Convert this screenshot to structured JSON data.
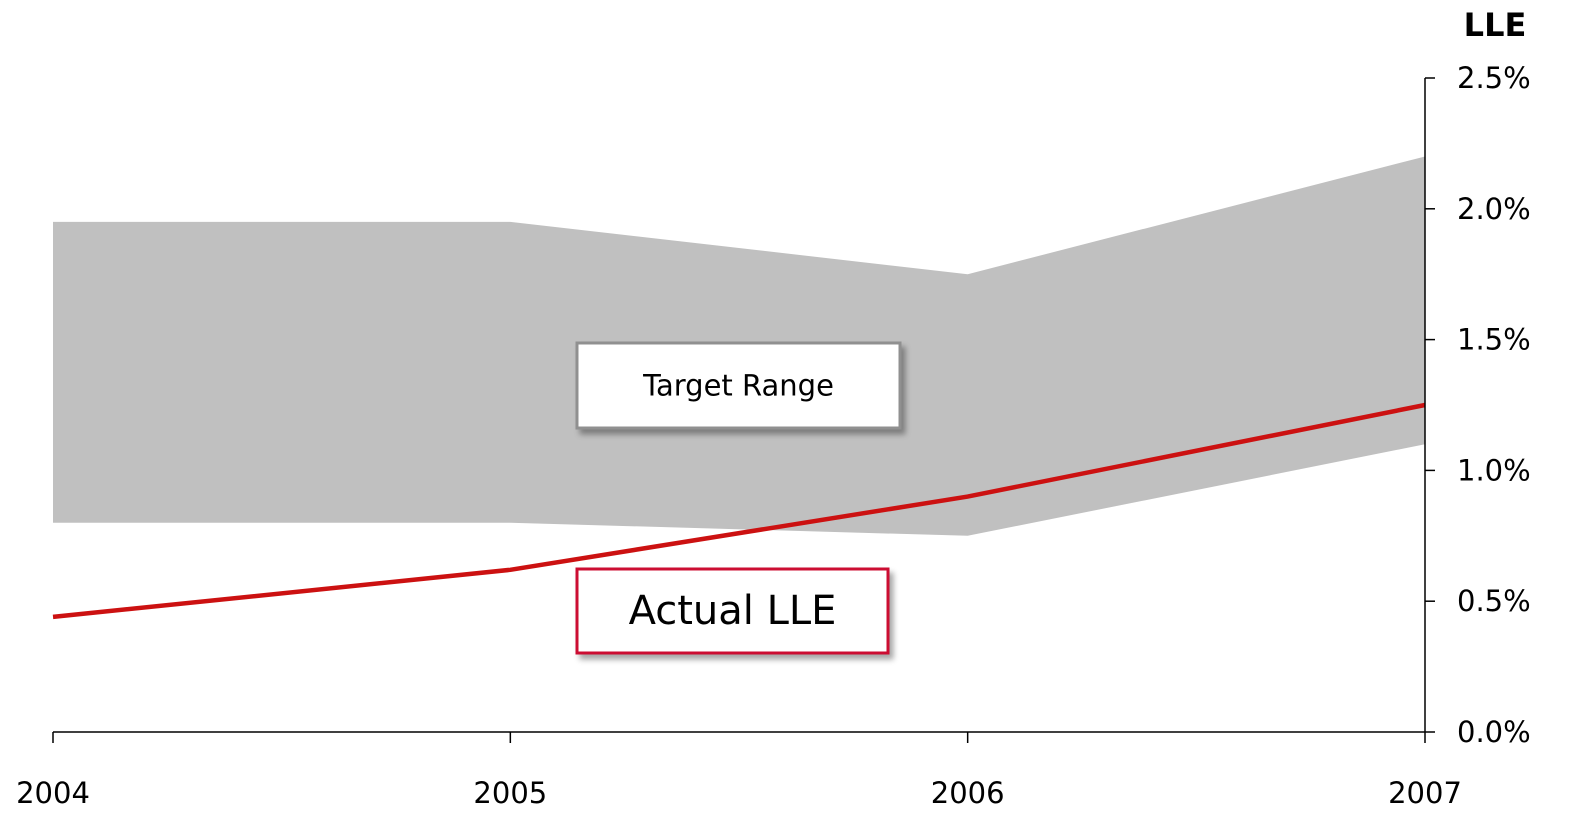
{
  "chart_data": {
    "type": "line",
    "y_label": "LLE",
    "categories": [
      "2004",
      "2005",
      "2006",
      "2007"
    ],
    "series": [
      {
        "name": "Target Range",
        "type": "band",
        "color": "#c0c0c0",
        "low": [
          0.8,
          0.8,
          0.75,
          1.1
        ],
        "high": [
          1.95,
          1.95,
          1.75,
          2.2
        ]
      },
      {
        "name": "Actual LLE",
        "type": "line",
        "color": "#cc1111",
        "values": [
          0.44,
          0.62,
          0.9,
          1.25
        ]
      }
    ],
    "ylim": [
      0,
      2.5
    ],
    "yticks": [
      {
        "value": 0,
        "label": "0.0%"
      },
      {
        "value": 0.5,
        "label": "0.5%"
      },
      {
        "value": 1,
        "label": "1.0%"
      },
      {
        "value": 1.5,
        "label": "1.5%"
      },
      {
        "value": 2,
        "label": "2.0%"
      },
      {
        "value": 2.5,
        "label": "2.5%"
      }
    ]
  }
}
